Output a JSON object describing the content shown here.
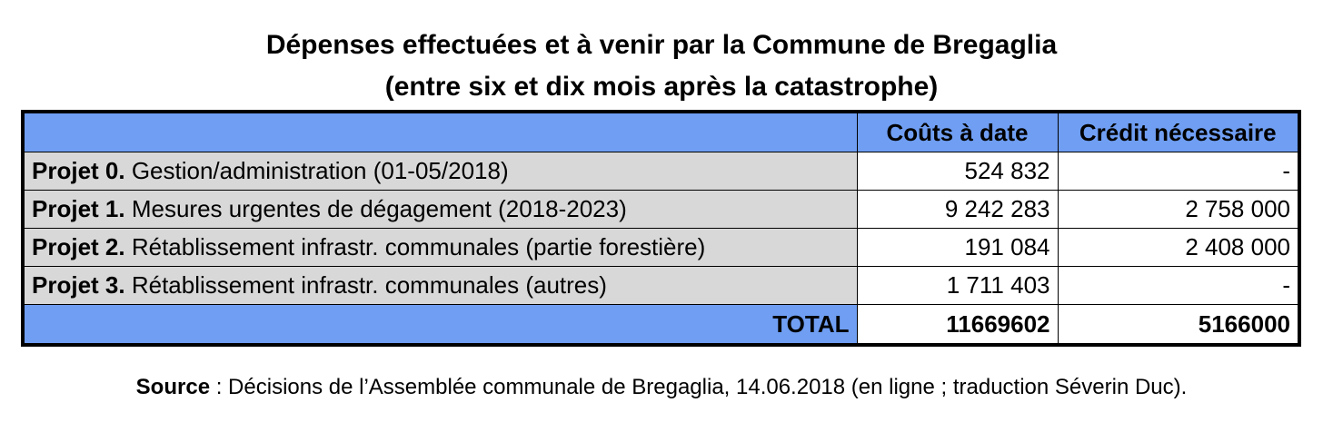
{
  "title": {
    "line1": "Dépenses effectuées et à venir par la Commune de Bregaglia",
    "line2": "(entre six et dix mois après la catastrophe)"
  },
  "table": {
    "headers": [
      "",
      "Coûts à date",
      "Crédit nécessaire"
    ],
    "rows": [
      {
        "project": "Projet 0.",
        "description": "Gestion/administration (01-05/2018)",
        "costs_to_date": "524 832",
        "credit_needed": "-"
      },
      {
        "project": "Projet 1.",
        "description": "Mesures urgentes de dégagement (2018-2023)",
        "costs_to_date": "9 242 283",
        "credit_needed": "2 758 000"
      },
      {
        "project": "Projet 2.",
        "description": "Rétablissement infrastr. communales (partie forestière)",
        "costs_to_date": "191 084",
        "credit_needed": "2 408 000"
      },
      {
        "project": "Projet 3.",
        "description": "Rétablissement infrastr. communales (autres)",
        "costs_to_date": "1 711 403",
        "credit_needed": "-"
      }
    ],
    "total": {
      "label": "TOTAL",
      "costs_to_date": "11669602",
      "credit_needed": "5166000"
    }
  },
  "source": {
    "label": "Source",
    "text": " : Décisions de l’Assemblée communale de Bregaglia, 14.06.2018 (en ligne ; traduction Séverin Duc)."
  },
  "colors": {
    "header_blue": "#6f9ef3",
    "label_grey": "#d8d8d8"
  }
}
